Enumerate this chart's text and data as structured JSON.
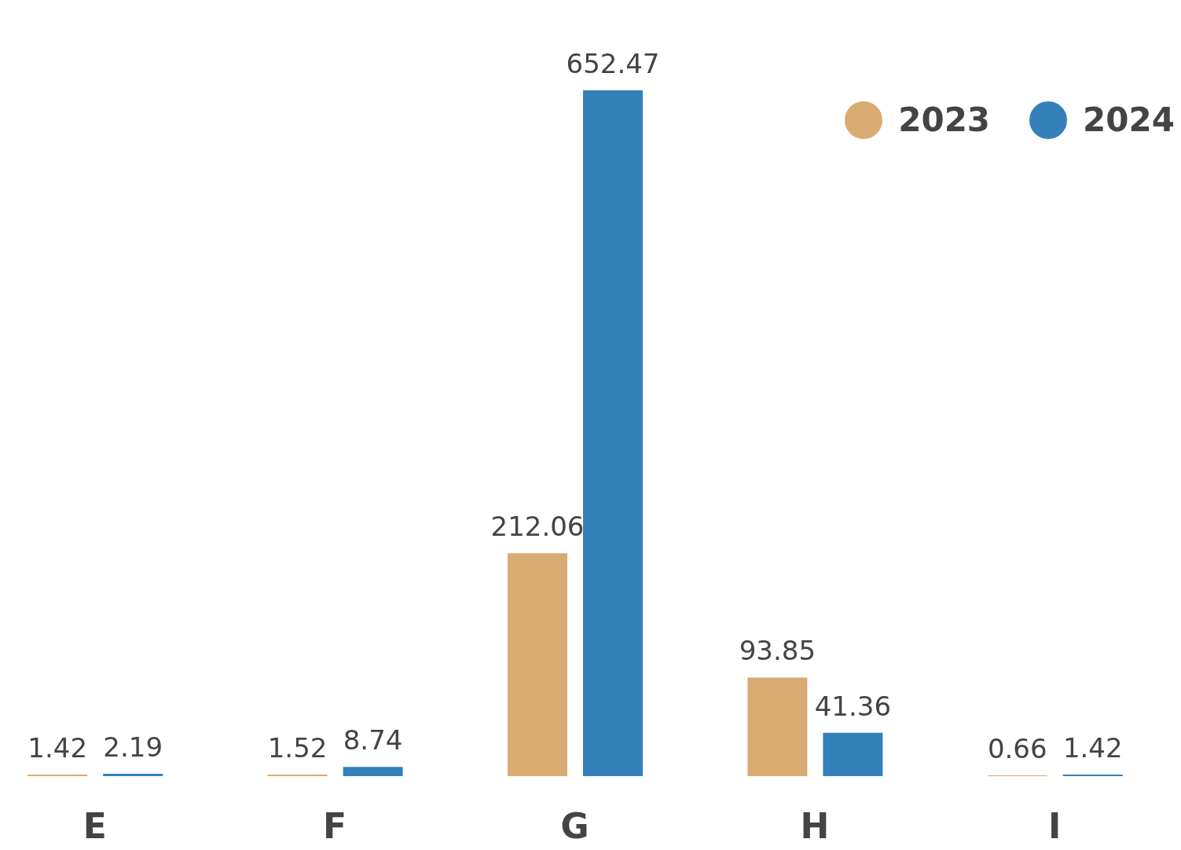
{
  "chart_data": {
    "type": "bar",
    "categories": [
      "E",
      "F",
      "G",
      "H",
      "I"
    ],
    "series": [
      {
        "name": "2023",
        "color": "#d9ab72",
        "values": [
          1.42,
          1.52,
          212.06,
          93.85,
          0.66
        ]
      },
      {
        "name": "2024",
        "color": "#3481b9",
        "values": [
          2.19,
          8.74,
          652.47,
          41.36,
          1.42
        ]
      }
    ],
    "data_labels": true,
    "legend": "top right",
    "grid": false
  }
}
